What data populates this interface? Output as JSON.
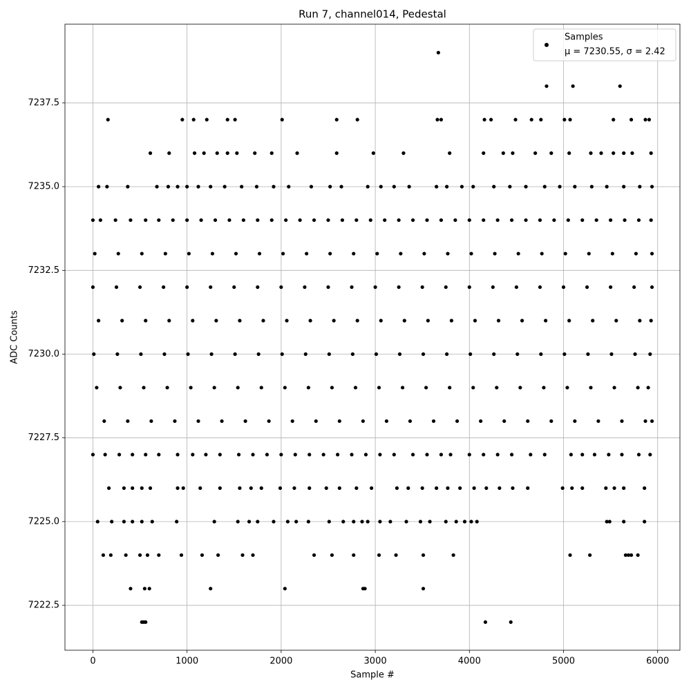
{
  "chart_data": {
    "type": "scatter",
    "title": "Run 7, channel014, Pedestal",
    "xlabel": "Sample #",
    "ylabel": "ADC Counts",
    "xlim": [
      -297,
      6237
    ],
    "ylim": [
      7221.16,
      7239.85
    ],
    "xticks": [
      0,
      1000,
      2000,
      3000,
      4000,
      5000,
      6000
    ],
    "yticks": [
      7222.5,
      {
        "value": 7225,
        "label": "7225.0"
      },
      7227.5,
      {
        "value": 7230,
        "label": "7230.0"
      },
      7232.5,
      {
        "value": 7235,
        "label": "7235.0"
      },
      7237.5
    ],
    "grid": true,
    "legend": "upper right",
    "legend_label": "μ = 7230.55, σ = 2.42",
    "series": [
      {
        "name": "Samples",
        "color": "#000000",
        "x": [
          3670,
          4820,
          5100,
          5600,
          160,
          950,
          1070,
          1210,
          1430,
          1510,
          2010,
          2590,
          2810,
          3660,
          3700,
          4160,
          4230,
          4490,
          4660,
          4760,
          5010,
          5070,
          5530,
          5720,
          5870,
          5910,
          610,
          810,
          1080,
          1180,
          1320,
          1430,
          1530,
          1720,
          1900,
          2170,
          2590,
          2980,
          3300,
          3790,
          4150,
          4360,
          4460,
          4700,
          4870,
          5060,
          5290,
          5400,
          5530,
          5640,
          5730,
          5930,
          60,
          150,
          370,
          680,
          800,
          900,
          1000,
          1120,
          1250,
          1400,
          1580,
          1740,
          1920,
          2080,
          2320,
          2520,
          2640,
          2920,
          3060,
          3200,
          3360,
          3650,
          3760,
          3920,
          4040,
          4260,
          4430,
          4600,
          4800,
          4960,
          5120,
          5300,
          5460,
          5640,
          5810,
          5940,
          0,
          80,
          240,
          400,
          560,
          700,
          850,
          1000,
          1150,
          1300,
          1450,
          1600,
          1750,
          1900,
          2050,
          2200,
          2350,
          2500,
          2650,
          2800,
          2950,
          3100,
          3250,
          3400,
          3550,
          3700,
          3850,
          4000,
          4150,
          4300,
          4450,
          4600,
          4750,
          4900,
          5050,
          5200,
          5350,
          5500,
          5650,
          5800,
          5930,
          20,
          270,
          520,
          770,
          1020,
          1270,
          1520,
          1770,
          2020,
          2270,
          2520,
          2770,
          3020,
          3270,
          3520,
          3770,
          4020,
          4270,
          4520,
          4770,
          5020,
          5270,
          5520,
          5770,
          5940,
          0,
          250,
          500,
          750,
          1000,
          1250,
          1500,
          1750,
          2000,
          2250,
          2500,
          2750,
          3000,
          3250,
          3500,
          3750,
          4000,
          4250,
          4500,
          4750,
          5000,
          5250,
          5500,
          5750,
          5940,
          60,
          310,
          560,
          810,
          1060,
          1310,
          1560,
          1810,
          2060,
          2310,
          2560,
          2810,
          3060,
          3310,
          3560,
          3810,
          4060,
          4310,
          4560,
          4810,
          5060,
          5310,
          5560,
          5810,
          5930,
          10,
          260,
          510,
          760,
          1010,
          1260,
          1510,
          1760,
          2010,
          2260,
          2510,
          2760,
          3010,
          3260,
          3510,
          3760,
          4010,
          4260,
          4510,
          4760,
          5010,
          5260,
          5510,
          5760,
          5920,
          40,
          290,
          540,
          790,
          1040,
          1290,
          1540,
          1790,
          2040,
          2290,
          2540,
          2790,
          3040,
          3290,
          3540,
          3790,
          4040,
          4290,
          4540,
          4790,
          5040,
          5290,
          5540,
          5790,
          5900,
          120,
          370,
          620,
          870,
          1120,
          1370,
          1620,
          1870,
          2120,
          2370,
          2620,
          2870,
          3120,
          3370,
          3620,
          3870,
          4120,
          4370,
          4620,
          4870,
          5120,
          5370,
          5620,
          5870,
          5940,
          0,
          130,
          280,
          420,
          560,
          700,
          900,
          1060,
          1200,
          1350,
          1550,
          1700,
          1850,
          2000,
          2150,
          2300,
          2450,
          2600,
          2750,
          2900,
          3050,
          3200,
          3400,
          3550,
          3700,
          3800,
          4000,
          4150,
          4300,
          4450,
          4650,
          4800,
          5080,
          5200,
          5330,
          5480,
          5620,
          5800,
          5920,
          170,
          330,
          420,
          520,
          610,
          900,
          960,
          1140,
          1350,
          1560,
          1680,
          1790,
          1990,
          2140,
          2300,
          2480,
          2620,
          2800,
          2960,
          3230,
          3350,
          3500,
          3650,
          3770,
          3900,
          4050,
          4180,
          4320,
          4460,
          4620,
          4990,
          5090,
          5200,
          5450,
          5540,
          5640,
          5860,
          50,
          200,
          330,
          420,
          520,
          630,
          890,
          1290,
          1540,
          1660,
          1750,
          1920,
          2070,
          2160,
          2290,
          2510,
          2660,
          2770,
          2860,
          2920,
          3050,
          3160,
          3330,
          3480,
          3580,
          3750,
          3860,
          3950,
          4020,
          4080,
          5460,
          5490,
          5640,
          5860,
          110,
          190,
          350,
          500,
          580,
          700,
          940,
          1160,
          1330,
          1590,
          1700,
          2350,
          2540,
          2770,
          3040,
          3220,
          3510,
          3830,
          5070,
          5280,
          5660,
          5690,
          5720,
          5790,
          400,
          550,
          600,
          1250,
          2040,
          2870,
          2890,
          3510,
          520,
          540,
          560,
          4170,
          4440
        ],
        "values": [
          7239,
          7238,
          7238,
          7238,
          7237,
          7237,
          7237,
          7237,
          7237,
          7237,
          7237,
          7237,
          7237,
          7237,
          7237,
          7237,
          7237,
          7237,
          7237,
          7237,
          7237,
          7237,
          7237,
          7237,
          7237,
          7237,
          7236,
          7236,
          7236,
          7236,
          7236,
          7236,
          7236,
          7236,
          7236,
          7236,
          7236,
          7236,
          7236,
          7236,
          7236,
          7236,
          7236,
          7236,
          7236,
          7236,
          7236,
          7236,
          7236,
          7236,
          7236,
          7236,
          7235,
          7235,
          7235,
          7235,
          7235,
          7235,
          7235,
          7235,
          7235,
          7235,
          7235,
          7235,
          7235,
          7235,
          7235,
          7235,
          7235,
          7235,
          7235,
          7235,
          7235,
          7235,
          7235,
          7235,
          7235,
          7235,
          7235,
          7235,
          7235,
          7235,
          7235,
          7235,
          7235,
          7235,
          7235,
          7235,
          7234,
          7234,
          7234,
          7234,
          7234,
          7234,
          7234,
          7234,
          7234,
          7234,
          7234,
          7234,
          7234,
          7234,
          7234,
          7234,
          7234,
          7234,
          7234,
          7234,
          7234,
          7234,
          7234,
          7234,
          7234,
          7234,
          7234,
          7234,
          7234,
          7234,
          7234,
          7234,
          7234,
          7234,
          7234,
          7234,
          7234,
          7234,
          7234,
          7234,
          7234,
          7233,
          7233,
          7233,
          7233,
          7233,
          7233,
          7233,
          7233,
          7233,
          7233,
          7233,
          7233,
          7233,
          7233,
          7233,
          7233,
          7233,
          7233,
          7233,
          7233,
          7233,
          7233,
          7233,
          7233,
          7233,
          7232,
          7232,
          7232,
          7232,
          7232,
          7232,
          7232,
          7232,
          7232,
          7232,
          7232,
          7232,
          7232,
          7232,
          7232,
          7232,
          7232,
          7232,
          7232,
          7232,
          7232,
          7232,
          7232,
          7232,
          7232,
          7231,
          7231,
          7231,
          7231,
          7231,
          7231,
          7231,
          7231,
          7231,
          7231,
          7231,
          7231,
          7231,
          7231,
          7231,
          7231,
          7231,
          7231,
          7231,
          7231,
          7231,
          7231,
          7231,
          7231,
          7231,
          7230,
          7230,
          7230,
          7230,
          7230,
          7230,
          7230,
          7230,
          7230,
          7230,
          7230,
          7230,
          7230,
          7230,
          7230,
          7230,
          7230,
          7230,
          7230,
          7230,
          7230,
          7230,
          7230,
          7230,
          7230,
          7229,
          7229,
          7229,
          7229,
          7229,
          7229,
          7229,
          7229,
          7229,
          7229,
          7229,
          7229,
          7229,
          7229,
          7229,
          7229,
          7229,
          7229,
          7229,
          7229,
          7229,
          7229,
          7229,
          7229,
          7229,
          7228,
          7228,
          7228,
          7228,
          7228,
          7228,
          7228,
          7228,
          7228,
          7228,
          7228,
          7228,
          7228,
          7228,
          7228,
          7228,
          7228,
          7228,
          7228,
          7228,
          7228,
          7228,
          7228,
          7228,
          7228,
          7227,
          7227,
          7227,
          7227,
          7227,
          7227,
          7227,
          7227,
          7227,
          7227,
          7227,
          7227,
          7227,
          7227,
          7227,
          7227,
          7227,
          7227,
          7227,
          7227,
          7227,
          7227,
          7227,
          7227,
          7227,
          7227,
          7227,
          7227,
          7227,
          7227,
          7227,
          7227,
          7227,
          7227,
          7227,
          7227,
          7227,
          7227,
          7227,
          7226,
          7226,
          7226,
          7226,
          7226,
          7226,
          7226,
          7226,
          7226,
          7226,
          7226,
          7226,
          7226,
          7226,
          7226,
          7226,
          7226,
          7226,
          7226,
          7226,
          7226,
          7226,
          7226,
          7226,
          7226,
          7226,
          7226,
          7226,
          7226,
          7226,
          7226,
          7226,
          7226,
          7226,
          7226,
          7226,
          7226,
          7225,
          7225,
          7225,
          7225,
          7225,
          7225,
          7225,
          7225,
          7225,
          7225,
          7225,
          7225,
          7225,
          7225,
          7225,
          7225,
          7225,
          7225,
          7225,
          7225,
          7225,
          7225,
          7225,
          7225,
          7225,
          7225,
          7225,
          7225,
          7225,
          7225,
          7225,
          7225,
          7225,
          7225,
          7224,
          7224,
          7224,
          7224,
          7224,
          7224,
          7224,
          7224,
          7224,
          7224,
          7224,
          7224,
          7224,
          7224,
          7224,
          7224,
          7224,
          7224,
          7224,
          7224,
          7224,
          7224,
          7224,
          7224,
          7223,
          7223,
          7223,
          7223,
          7223,
          7223,
          7223,
          7223,
          7222,
          7222,
          7222,
          7222,
          7222
        ]
      }
    ]
  }
}
